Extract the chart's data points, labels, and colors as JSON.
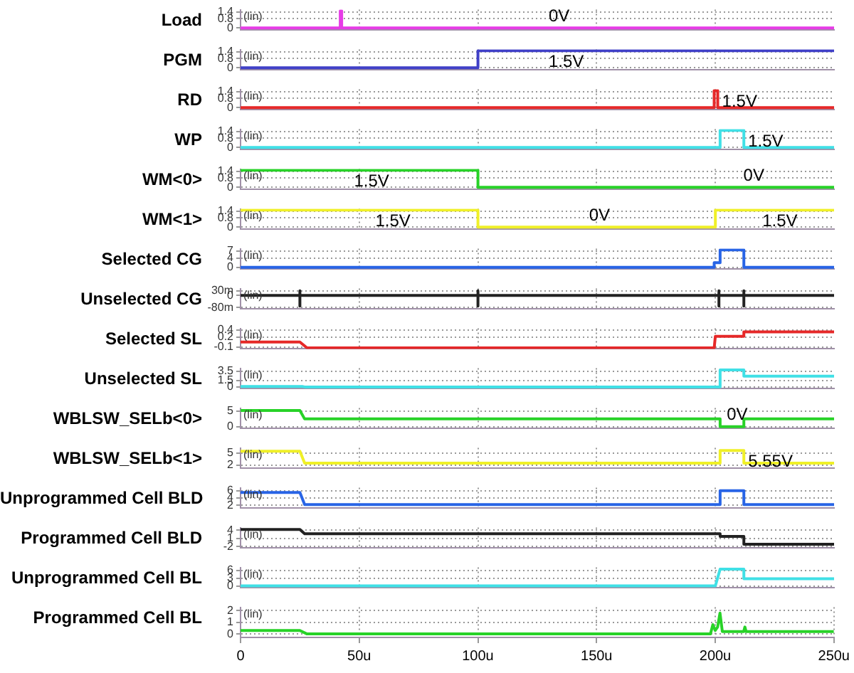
{
  "chart_data": [
    {
      "type": "line",
      "ylabel": "Load",
      "color": "#e63ce6",
      "x": [
        0,
        42,
        42,
        42.6,
        42.6,
        250
      ],
      "values": [
        0,
        0,
        1.5,
        1.5,
        0,
        0
      ],
      "xlim": [
        0,
        250
      ],
      "xticks": [
        {
          "value": 50,
          "label": null
        },
        {
          "value": 100,
          "label": null
        },
        {
          "value": 150,
          "label": null
        },
        {
          "value": 200,
          "label": null
        }
      ],
      "ylim": [
        -0.2,
        1.6
      ],
      "yticks": [
        0,
        0.8,
        1.4
      ],
      "grid": true,
      "tick_labels": "y",
      "annotations": [
        "(lin)",
        {
          "text": "0V",
          "x": 128,
          "y": 0
        }
      ]
    },
    {
      "type": "line",
      "ylabel": "PGM",
      "color": "#4040c8",
      "x": [
        0,
        100,
        100,
        128,
        250
      ],
      "values": [
        0,
        0,
        1.5,
        1.5,
        1.5
      ],
      "xlim": [
        0,
        250
      ],
      "xticks": [
        {
          "value": 50,
          "label": null
        },
        {
          "value": 100,
          "label": null
        },
        {
          "value": 150,
          "label": null
        },
        {
          "value": 200,
          "label": null
        }
      ],
      "ylim": [
        -0.2,
        1.6
      ],
      "yticks": [
        0,
        0.8,
        1.4
      ],
      "grid": true,
      "tick_labels": "y",
      "annotations": [
        "(lin)",
        {
          "text": "1.5V",
          "x": 128,
          "y": 1.5
        }
      ]
    },
    {
      "type": "line",
      "ylabel": "RD",
      "color": "#e62828",
      "x": [
        0,
        199.5,
        199.5,
        201,
        201,
        250
      ],
      "values": [
        0,
        0,
        1.5,
        1.5,
        0,
        0
      ],
      "xlim": [
        0,
        250
      ],
      "xticks": [
        {
          "value": 50,
          "label": null
        },
        {
          "value": 100,
          "label": null
        },
        {
          "value": 150,
          "label": null
        },
        {
          "value": 200,
          "label": null
        }
      ],
      "ylim": [
        -0.2,
        1.6
      ],
      "yticks": [
        0,
        0.8,
        1.4
      ],
      "grid": true,
      "tick_labels": "y",
      "annotations": [
        "(lin)",
        {
          "text": "1.5V",
          "x": 201,
          "y": 1.5
        }
      ]
    },
    {
      "type": "line",
      "ylabel": "WP",
      "color": "#40e0e6",
      "x": [
        0,
        202,
        202,
        212,
        212,
        250
      ],
      "values": [
        0,
        0,
        1.5,
        1.5,
        0,
        0
      ],
      "xlim": [
        0,
        250
      ],
      "xticks": [
        {
          "value": 50,
          "label": null
        },
        {
          "value": 100,
          "label": null
        },
        {
          "value": 150,
          "label": null
        },
        {
          "value": 200,
          "label": null
        }
      ],
      "ylim": [
        -0.2,
        1.6
      ],
      "yticks": [
        0,
        0.8,
        1.4
      ],
      "grid": true,
      "tick_labels": "y",
      "annotations": [
        "(lin)",
        {
          "text": "1.5V",
          "x": 212,
          "y": 1.5
        }
      ]
    },
    {
      "type": "line",
      "ylabel": "WM<0>",
      "color": "#28d228",
      "x": [
        0,
        100,
        100,
        250
      ],
      "values": [
        1.5,
        1.5,
        0,
        0
      ],
      "xlim": [
        0,
        250
      ],
      "xticks": [
        {
          "value": 50,
          "label": null
        },
        {
          "value": 100,
          "label": null
        },
        {
          "value": 150,
          "label": null
        },
        {
          "value": 200,
          "label": null
        }
      ],
      "ylim": [
        -0.2,
        1.6
      ],
      "yticks": [
        0,
        0.8,
        1.4
      ],
      "grid": true,
      "tick_labels": "y",
      "annotations": [
        "(lin)",
        {
          "text": "1.5V",
          "x": 46,
          "y": 1.5
        },
        {
          "text": "0V",
          "x": 210,
          "y": 0
        }
      ]
    },
    {
      "type": "line",
      "ylabel": "WM<1>",
      "color": "#f0f028",
      "x": [
        0,
        100,
        100,
        200,
        200,
        250
      ],
      "values": [
        1.5,
        1.5,
        0,
        0,
        1.5,
        1.5
      ],
      "xlim": [
        0,
        250
      ],
      "xticks": [
        {
          "value": 50,
          "label": null
        },
        {
          "value": 100,
          "label": null
        },
        {
          "value": 150,
          "label": null
        },
        {
          "value": 200,
          "label": null
        }
      ],
      "ylim": [
        -0.2,
        1.6
      ],
      "yticks": [
        0,
        0.8,
        1.4
      ],
      "grid": true,
      "tick_labels": "y",
      "annotations": [
        "(lin)",
        {
          "text": "1.5V",
          "x": 55,
          "y": 1.5
        },
        {
          "text": "0V",
          "x": 145,
          "y": 0
        },
        {
          "text": "1.5V",
          "x": 218,
          "y": 1.5
        }
      ]
    },
    {
      "type": "line",
      "ylabel": "Selected CG",
      "color": "#2864e6",
      "x": [
        0,
        199.5,
        199.5,
        202,
        202,
        212,
        212,
        250
      ],
      "values": [
        0,
        0,
        2,
        2,
        7.5,
        7.5,
        0,
        0
      ],
      "xlim": [
        0,
        250
      ],
      "xticks": [
        {
          "value": 50,
          "label": null
        },
        {
          "value": 100,
          "label": null
        },
        {
          "value": 150,
          "label": null
        },
        {
          "value": 200,
          "label": null
        }
      ],
      "ylim": [
        -0.8,
        8
      ],
      "yticks": [
        0,
        4,
        7
      ],
      "grid": true,
      "tick_labels": "y",
      "annotations": [
        "(lin)"
      ]
    },
    {
      "type": "line",
      "ylabel": "Unselected CG",
      "color": "#222222",
      "x": [
        0,
        25,
        25,
        25,
        25,
        100,
        100,
        100,
        100,
        201.5,
        201.5,
        201.5,
        201.5,
        212,
        212,
        212,
        212,
        250
      ],
      "values": [
        0,
        0,
        30,
        -70,
        0,
        0,
        30,
        -70,
        0,
        0,
        30,
        -70,
        0,
        0,
        30,
        -70,
        0,
        0
      ],
      "xlim": [
        0,
        250
      ],
      "xticks": [
        {
          "value": 50,
          "label": null
        },
        {
          "value": 100,
          "label": null
        },
        {
          "value": 150,
          "label": null
        },
        {
          "value": 200,
          "label": null
        }
      ],
      "ylim": [
        -90,
        45
      ],
      "yticks": [
        {
          "value": -80,
          "label": "-80m"
        },
        0,
        {
          "value": 30,
          "label": "30m"
        }
      ],
      "grid": true,
      "tick_labels": "y",
      "annotations": [
        "(lin)"
      ]
    },
    {
      "type": "line",
      "ylabel": "Selected SL",
      "color": "#e62828",
      "x": [
        0,
        25,
        28,
        199.5,
        200,
        212,
        212,
        250
      ],
      "values": [
        0.05,
        0.05,
        -0.12,
        -0.12,
        0.22,
        0.22,
        0.35,
        0.35
      ],
      "xlim": [
        0,
        250
      ],
      "xticks": [
        {
          "value": 50,
          "label": null
        },
        {
          "value": 100,
          "label": null
        },
        {
          "value": 150,
          "label": null
        },
        {
          "value": 200,
          "label": null
        }
      ],
      "ylim": [
        -0.15,
        0.45
      ],
      "yticks": [
        -0.1,
        0.2,
        0.4
      ],
      "grid": true,
      "tick_labels": "y",
      "annotations": [
        "(lin)"
      ]
    },
    {
      "type": "line",
      "ylabel": "Unselected SL",
      "color": "#40e0e6",
      "x": [
        0,
        26,
        27,
        202,
        202,
        212,
        212,
        250
      ],
      "values": [
        0.1,
        0.1,
        0,
        0,
        3.8,
        3.8,
        2.4,
        2.4
      ],
      "xlim": [
        0,
        250
      ],
      "xticks": [
        {
          "value": 50,
          "label": null
        },
        {
          "value": 100,
          "label": null
        },
        {
          "value": 150,
          "label": null
        },
        {
          "value": 200,
          "label": null
        }
      ],
      "ylim": [
        -0.4,
        4.2
      ],
      "yticks": [
        0,
        1.5,
        3.5
      ],
      "grid": true,
      "tick_labels": "y",
      "annotations": [
        "(lin)"
      ]
    },
    {
      "type": "line",
      "ylabel": "WBLSW_SELb<0>",
      "color": "#28d228",
      "x": [
        0,
        25,
        27,
        202,
        202,
        212,
        212,
        250
      ],
      "values": [
        5.2,
        5.2,
        2.5,
        2.5,
        0,
        0,
        2.5,
        2.5
      ],
      "xlim": [
        0,
        250
      ],
      "xticks": [
        {
          "value": 50,
          "label": null
        },
        {
          "value": 100,
          "label": null
        },
        {
          "value": 150,
          "label": null
        },
        {
          "value": 200,
          "label": null
        }
      ],
      "ylim": [
        -0.6,
        6
      ],
      "yticks": [
        0,
        5
      ],
      "grid": true,
      "tick_labels": "y",
      "annotations": [
        "(lin)",
        {
          "text": "0V",
          "x": 203,
          "y": 0
        }
      ]
    },
    {
      "type": "line",
      "ylabel": "WBLSW_SELb<1>",
      "color": "#f0f028",
      "x": [
        0,
        25,
        27,
        202,
        202,
        212,
        212,
        250
      ],
      "values": [
        5.4,
        5.4,
        2.5,
        2.5,
        5.55,
        5.55,
        2.5,
        2.5
      ],
      "xlim": [
        0,
        250
      ],
      "xticks": [
        {
          "value": 50,
          "label": null
        },
        {
          "value": 100,
          "label": null
        },
        {
          "value": 150,
          "label": null
        },
        {
          "value": 200,
          "label": null
        }
      ],
      "ylim": [
        1.2,
        6.2
      ],
      "yticks": [
        2,
        5
      ],
      "grid": true,
      "tick_labels": "y",
      "annotations": [
        "(lin)",
        {
          "text": "5.55V",
          "x": 212,
          "y": 5.55
        }
      ]
    },
    {
      "type": "line",
      "ylabel": "Unprogrammed Cell BLD",
      "color": "#2864e6",
      "x": [
        0,
        25,
        27,
        202,
        202,
        212,
        212,
        250
      ],
      "values": [
        5.5,
        5.5,
        2.2,
        2.2,
        6,
        6,
        2.2,
        2.2
      ],
      "xlim": [
        0,
        250
      ],
      "xticks": [
        {
          "value": 50,
          "label": null
        },
        {
          "value": 100,
          "label": null
        },
        {
          "value": 150,
          "label": null
        },
        {
          "value": 200,
          "label": null
        }
      ],
      "ylim": [
        1.2,
        6.8
      ],
      "yticks": [
        2,
        4,
        6
      ],
      "grid": true,
      "tick_labels": "y",
      "annotations": [
        "(lin)"
      ]
    },
    {
      "type": "line",
      "ylabel": "Programmed Cell BLD",
      "color": "#222222",
      "x": [
        0,
        25,
        27,
        202,
        202,
        212,
        212,
        250
      ],
      "values": [
        4.3,
        4.3,
        2.7,
        2.7,
        1.7,
        1.7,
        -1.2,
        -1.2
      ],
      "xlim": [
        0,
        250
      ],
      "xticks": [
        {
          "value": 50,
          "label": null
        },
        {
          "value": 100,
          "label": null
        },
        {
          "value": 150,
          "label": null
        },
        {
          "value": 200,
          "label": null
        }
      ],
      "ylim": [
        -2.6,
        5
      ],
      "yticks": [
        -2,
        1,
        4
      ],
      "grid": true,
      "tick_labels": "y",
      "annotations": [
        "(lin)"
      ]
    },
    {
      "type": "line",
      "ylabel": "Unprogrammed Cell BL",
      "color": "#40e0e6",
      "x": [
        0,
        200,
        202,
        212,
        212,
        250
      ],
      "values": [
        0,
        0,
        6.5,
        6.5,
        2.8,
        2.8
      ],
      "xlim": [
        0,
        250
      ],
      "xticks": [
        {
          "value": 50,
          "label": null
        },
        {
          "value": 100,
          "label": null
        },
        {
          "value": 150,
          "label": null
        },
        {
          "value": 200,
          "label": null
        }
      ],
      "ylim": [
        -0.8,
        7.2
      ],
      "yticks": [
        0,
        3,
        6
      ],
      "grid": true,
      "tick_labels": "y",
      "annotations": [
        "(lin)"
      ]
    },
    {
      "type": "line",
      "ylabel": "Programmed Cell BL",
      "color": "#28d228",
      "x": [
        0,
        25,
        28,
        198,
        199,
        200,
        201,
        202,
        203,
        212,
        212.5,
        213,
        250
      ],
      "values": [
        0.3,
        0.3,
        0,
        0,
        0.8,
        0.3,
        0.6,
        1.8,
        0.2,
        0.2,
        0.6,
        0.2,
        0.2
      ],
      "xlim": [
        0,
        250
      ],
      "xticks": [
        0,
        {
          "value": 50,
          "label": "50u"
        },
        {
          "value": 100,
          "label": "100u"
        },
        {
          "value": 150,
          "label": "150u"
        },
        {
          "value": 200,
          "label": "200u"
        },
        {
          "value": 250,
          "label": "250u"
        }
      ],
      "ylim": [
        -0.3,
        2.3
      ],
      "yticks": [
        0,
        1,
        2
      ],
      "grid": true,
      "annotations": [
        "(lin)"
      ]
    }
  ]
}
